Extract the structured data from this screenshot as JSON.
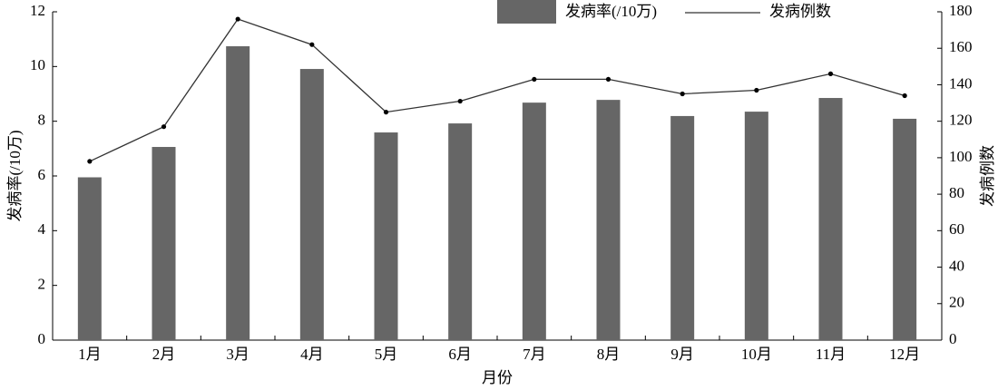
{
  "chart_data": {
    "type": "bar-line",
    "categories": [
      "1月",
      "2月",
      "3月",
      "4月",
      "5月",
      "6月",
      "7月",
      "8月",
      "9月",
      "10月",
      "11月",
      "12月"
    ],
    "x_label": "月份",
    "y_label": "发病率(/10万)",
    "y2_label": "发病例数",
    "series": [
      {
        "name": "发病率(/10万)",
        "type": "bar",
        "color": "#666666",
        "values": [
          5.95,
          7.06,
          10.74,
          9.91,
          7.59,
          7.92,
          8.68,
          8.78,
          8.19,
          8.35,
          8.85,
          8.09
        ]
      },
      {
        "name": "发病例数",
        "type": "line",
        "axis": "y2",
        "color": "#333333",
        "values": [
          98,
          117,
          176,
          162,
          125,
          131,
          143,
          143,
          135,
          137,
          146,
          134
        ]
      }
    ],
    "ylim": [
      0,
      12
    ],
    "yticks": [
      0,
      2,
      4,
      6,
      8,
      10,
      12
    ],
    "y2lim": [
      0,
      180
    ],
    "y2ticks": [
      0,
      20,
      40,
      60,
      80,
      100,
      120,
      140,
      160,
      180
    ],
    "legend": "top-right"
  }
}
